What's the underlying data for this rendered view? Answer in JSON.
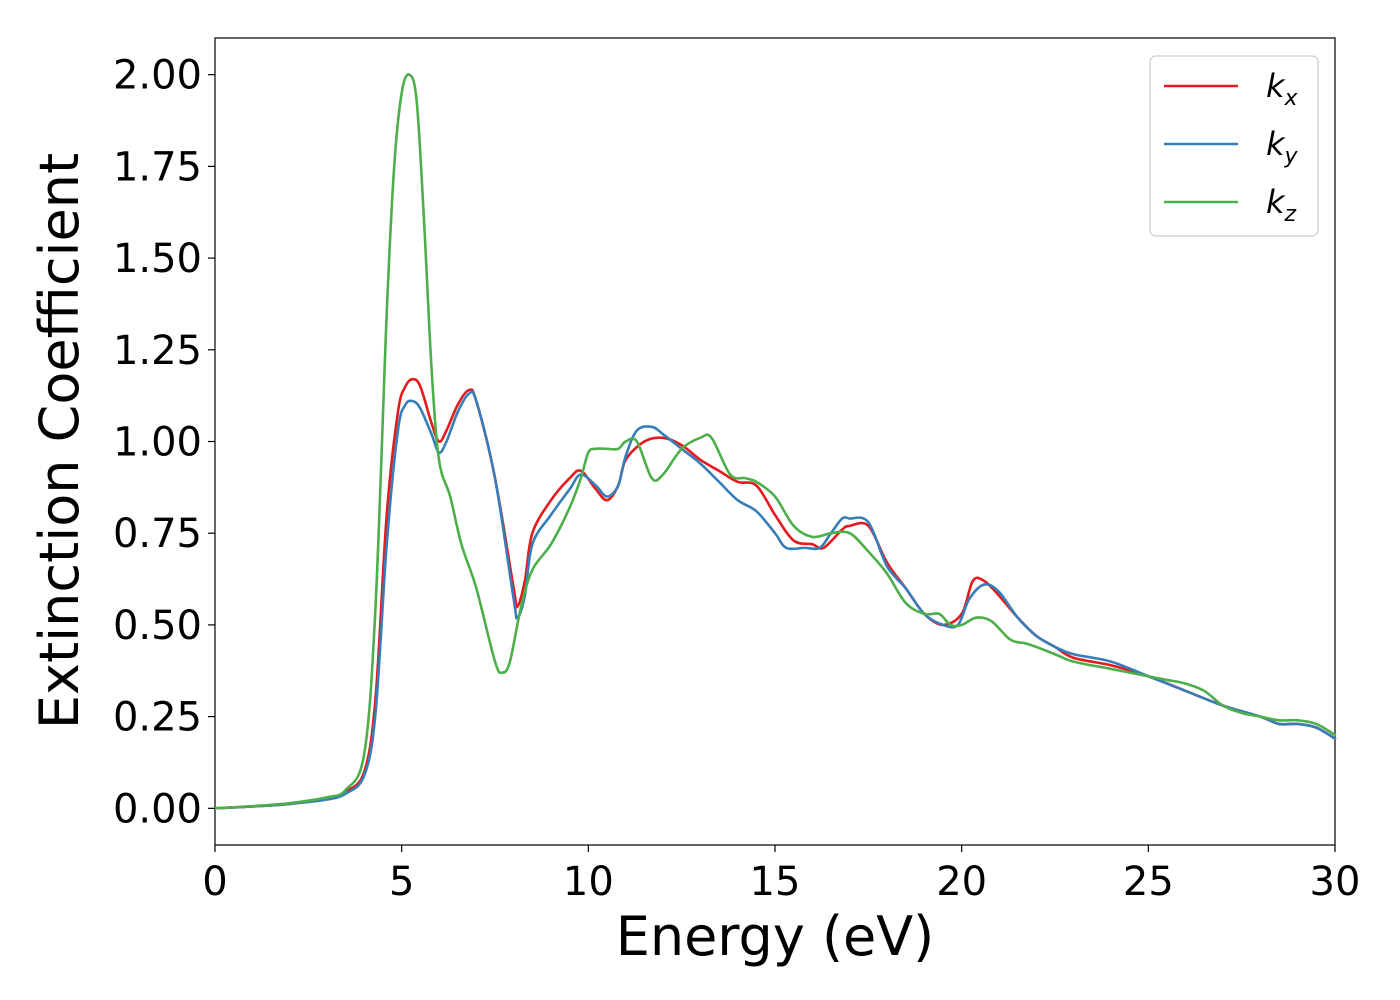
{
  "chart_data": {
    "type": "line",
    "xlabel": "Energy (eV)",
    "ylabel": "Extinction Coefficient",
    "xlim": [
      0,
      30
    ],
    "ylim": [
      -0.1,
      2.1
    ],
    "xticks": [
      0,
      5,
      10,
      15,
      20,
      25,
      30
    ],
    "xtick_labels": [
      "0",
      "5",
      "10",
      "15",
      "20",
      "25",
      "30"
    ],
    "yticks": [
      0.0,
      0.25,
      0.5,
      0.75,
      1.0,
      1.25,
      1.5,
      1.75,
      2.0
    ],
    "ytick_labels": [
      "0.00",
      "0.25",
      "0.50",
      "0.75",
      "1.00",
      "1.25",
      "1.50",
      "1.75",
      "2.00"
    ],
    "grid": false,
    "legend_position": "top-right",
    "series": [
      {
        "name": "kx",
        "symbol": "k",
        "subscript": "x",
        "color": "#e41a1c",
        "x": [
          0,
          1,
          2,
          3,
          3.5,
          4.0,
          4.3,
          4.6,
          4.9,
          5.1,
          5.3,
          5.5,
          5.8,
          6.0,
          6.2,
          6.5,
          6.8,
          7.0,
          7.5,
          8.0,
          8.1,
          8.3,
          8.5,
          9.0,
          9.5,
          9.8,
          10.2,
          10.5,
          10.8,
          11.0,
          11.5,
          12.0,
          12.5,
          13.0,
          13.5,
          14.0,
          14.5,
          15.0,
          15.5,
          16.0,
          16.3,
          16.8,
          17.0,
          17.5,
          18.0,
          18.5,
          19.0,
          19.5,
          20.0,
          20.3,
          20.6,
          21.0,
          21.5,
          22.0,
          22.5,
          23.0,
          24.0,
          25.0,
          26.0,
          27.0,
          28.0,
          28.5,
          29.0,
          29.5,
          30.0
        ],
        "y": [
          0.0,
          0.005,
          0.012,
          0.025,
          0.045,
          0.1,
          0.3,
          0.8,
          1.08,
          1.15,
          1.17,
          1.15,
          1.05,
          1.0,
          1.03,
          1.1,
          1.14,
          1.11,
          0.9,
          0.6,
          0.55,
          0.62,
          0.75,
          0.84,
          0.9,
          0.92,
          0.87,
          0.84,
          0.88,
          0.95,
          1.0,
          1.01,
          0.99,
          0.95,
          0.92,
          0.89,
          0.88,
          0.8,
          0.73,
          0.72,
          0.71,
          0.76,
          0.77,
          0.77,
          0.67,
          0.6,
          0.53,
          0.5,
          0.53,
          0.62,
          0.62,
          0.58,
          0.52,
          0.47,
          0.44,
          0.41,
          0.39,
          0.36,
          0.32,
          0.28,
          0.25,
          0.23,
          0.23,
          0.22,
          0.19
        ]
      },
      {
        "name": "ky",
        "symbol": "k",
        "subscript": "y",
        "color": "#377eb8",
        "x": [
          0,
          1,
          2,
          3,
          3.5,
          4.0,
          4.3,
          4.6,
          4.9,
          5.1,
          5.3,
          5.5,
          5.8,
          6.0,
          6.2,
          6.5,
          6.8,
          7.0,
          7.5,
          8.0,
          8.1,
          8.3,
          8.5,
          9.0,
          9.5,
          9.8,
          10.2,
          10.5,
          10.8,
          11.0,
          11.3,
          11.7,
          12.0,
          12.5,
          13.0,
          13.5,
          14.0,
          14.5,
          15.0,
          15.3,
          15.8,
          16.2,
          16.5,
          16.8,
          17.0,
          17.5,
          18.0,
          18.5,
          19.0,
          19.5,
          19.9,
          20.2,
          20.6,
          21.0,
          21.5,
          22.0,
          22.5,
          23.0,
          24.0,
          25.0,
          26.0,
          27.0,
          28.0,
          28.5,
          29.0,
          29.5,
          30.0
        ],
        "y": [
          0.0,
          0.005,
          0.012,
          0.024,
          0.04,
          0.09,
          0.26,
          0.72,
          1.03,
          1.1,
          1.11,
          1.09,
          1.02,
          0.97,
          1.0,
          1.08,
          1.13,
          1.11,
          0.9,
          0.57,
          0.52,
          0.58,
          0.72,
          0.8,
          0.87,
          0.91,
          0.88,
          0.85,
          0.88,
          0.96,
          1.03,
          1.04,
          1.02,
          0.98,
          0.94,
          0.89,
          0.84,
          0.81,
          0.75,
          0.71,
          0.71,
          0.71,
          0.75,
          0.79,
          0.79,
          0.78,
          0.66,
          0.6,
          0.53,
          0.5,
          0.5,
          0.57,
          0.61,
          0.59,
          0.52,
          0.47,
          0.44,
          0.42,
          0.4,
          0.36,
          0.32,
          0.28,
          0.25,
          0.23,
          0.23,
          0.22,
          0.19
        ]
      },
      {
        "name": "kz",
        "symbol": "k",
        "subscript": "z",
        "color": "#4daf4a",
        "x": [
          0,
          1,
          2,
          3,
          3.5,
          4.0,
          4.3,
          4.6,
          4.8,
          5.0,
          5.2,
          5.4,
          5.6,
          5.8,
          6.0,
          6.3,
          6.6,
          7.0,
          7.5,
          7.7,
          7.9,
          8.2,
          8.5,
          9.0,
          9.5,
          9.8,
          10.0,
          10.2,
          10.5,
          10.8,
          11.0,
          11.3,
          11.7,
          12.0,
          12.5,
          13.0,
          13.3,
          13.8,
          14.2,
          14.5,
          15.0,
          15.5,
          16.0,
          16.5,
          17.0,
          17.5,
          18.0,
          18.5,
          19.0,
          19.4,
          19.7,
          20.0,
          20.4,
          20.8,
          21.3,
          21.7,
          22.0,
          22.5,
          23.0,
          24.0,
          25.0,
          25.5,
          26.0,
          26.5,
          27.0,
          27.5,
          28.0,
          28.5,
          29.0,
          29.5,
          30.0
        ],
        "y": [
          0.0,
          0.006,
          0.014,
          0.03,
          0.05,
          0.15,
          0.55,
          1.35,
          1.75,
          1.95,
          2.0,
          1.93,
          1.6,
          1.2,
          0.95,
          0.85,
          0.72,
          0.6,
          0.4,
          0.37,
          0.4,
          0.55,
          0.65,
          0.72,
          0.82,
          0.9,
          0.97,
          0.98,
          0.98,
          0.98,
          1.0,
          1.0,
          0.9,
          0.91,
          0.98,
          1.01,
          1.01,
          0.91,
          0.9,
          0.89,
          0.85,
          0.77,
          0.74,
          0.75,
          0.75,
          0.7,
          0.64,
          0.56,
          0.53,
          0.53,
          0.5,
          0.5,
          0.52,
          0.51,
          0.46,
          0.45,
          0.44,
          0.42,
          0.4,
          0.38,
          0.36,
          0.35,
          0.34,
          0.32,
          0.28,
          0.26,
          0.25,
          0.24,
          0.24,
          0.23,
          0.2
        ]
      }
    ]
  },
  "colors": {
    "background": "#ffffff",
    "axes": "#000000",
    "legend_border": "#cccccc"
  }
}
